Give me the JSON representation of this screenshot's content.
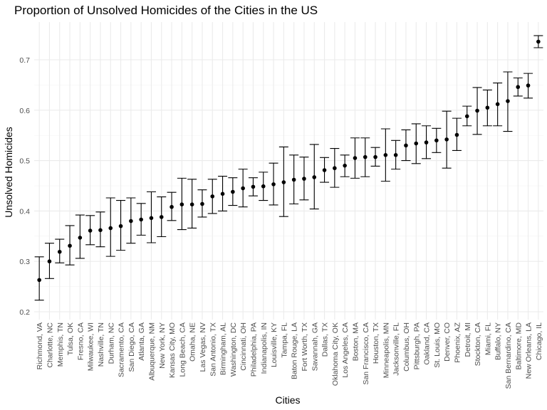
{
  "chart_data": {
    "type": "scatter",
    "title": "Proportion of Unsolved Homicides of the Cities in the US",
    "xlabel": "Cities",
    "ylabel": "Unsolved Homicides",
    "ylim": [
      0.2,
      0.75
    ],
    "yticks": [
      0.2,
      0.3,
      0.4,
      0.5,
      0.6,
      0.7
    ],
    "ytick_labels": [
      "0.2",
      "0.3",
      "0.4",
      "0.5",
      "0.6",
      "0.7"
    ],
    "grid": true,
    "error_bars": true,
    "cities": [
      "Richmond, VA",
      "Charlotte, NC",
      "Memphis, TN",
      "Tulsa, OK",
      "Fresno, CA",
      "Milwaukee, WI",
      "Nashville, TN",
      "Durham, NC",
      "Sacramento, CA",
      "San Diego, CA",
      "Atlanta, GA",
      "Albuquerque, NM",
      "New York, NY",
      "Kansas City, MO",
      "Long Beach, CA",
      "Omaha, NE",
      "Las Vegas, NV",
      "San Antonio, TX",
      "Birmingham, AL",
      "Washington, DC",
      "Cincinnati, OH",
      "Philadelphia, PA",
      "Indianapolis, IN",
      "Louisville, KY",
      "Tampa, FL",
      "Baton Rouge, LA",
      "Fort Worth, TX",
      "Savannah, GA",
      "Dallas, TX",
      "Oklahoma City, OK",
      "Los Angeles, CA",
      "Boston, MA",
      "San Francisco, CA",
      "Houston, TX",
      "Minneapolis, MN",
      "Jacksonville, FL",
      "Columbus, OH",
      "Pittsburgh, PA",
      "Oakland, CA",
      "St. Louis, MO",
      "Denver, CO",
      "Phoenix, AZ",
      "Detroit, MI",
      "Stockton, CA",
      "Miami, FL",
      "Buffalo, NY",
      "San Bernardino, CA",
      "Baltimore, MD",
      "New Orleans, LA",
      "Chicago, IL"
    ],
    "estimate": [
      0.263,
      0.3,
      0.319,
      0.331,
      0.347,
      0.361,
      0.362,
      0.366,
      0.37,
      0.38,
      0.383,
      0.386,
      0.388,
      0.408,
      0.413,
      0.413,
      0.414,
      0.429,
      0.434,
      0.438,
      0.445,
      0.448,
      0.449,
      0.453,
      0.457,
      0.462,
      0.464,
      0.467,
      0.481,
      0.485,
      0.49,
      0.505,
      0.507,
      0.507,
      0.511,
      0.511,
      0.53,
      0.534,
      0.536,
      0.54,
      0.542,
      0.551,
      0.588,
      0.599,
      0.605,
      0.612,
      0.618,
      0.646,
      0.649,
      0.736
    ],
    "lower": [
      0.223,
      0.266,
      0.297,
      0.293,
      0.306,
      0.333,
      0.329,
      0.31,
      0.322,
      0.336,
      0.352,
      0.337,
      0.349,
      0.381,
      0.363,
      0.366,
      0.388,
      0.395,
      0.4,
      0.411,
      0.408,
      0.43,
      0.421,
      0.412,
      0.389,
      0.414,
      0.422,
      0.404,
      0.457,
      0.447,
      0.468,
      0.465,
      0.468,
      0.489,
      0.459,
      0.483,
      0.5,
      0.494,
      0.504,
      0.516,
      0.485,
      0.52,
      0.569,
      0.552,
      0.569,
      0.569,
      0.558,
      0.628,
      0.624,
      0.724
    ],
    "upper": [
      0.309,
      0.336,
      0.344,
      0.371,
      0.392,
      0.391,
      0.398,
      0.426,
      0.421,
      0.426,
      0.415,
      0.438,
      0.428,
      0.437,
      0.465,
      0.463,
      0.442,
      0.463,
      0.469,
      0.466,
      0.483,
      0.466,
      0.477,
      0.495,
      0.527,
      0.511,
      0.507,
      0.532,
      0.506,
      0.524,
      0.511,
      0.545,
      0.545,
      0.526,
      0.563,
      0.54,
      0.561,
      0.573,
      0.569,
      0.564,
      0.598,
      0.584,
      0.608,
      0.645,
      0.64,
      0.654,
      0.676,
      0.664,
      0.673,
      0.748
    ]
  }
}
